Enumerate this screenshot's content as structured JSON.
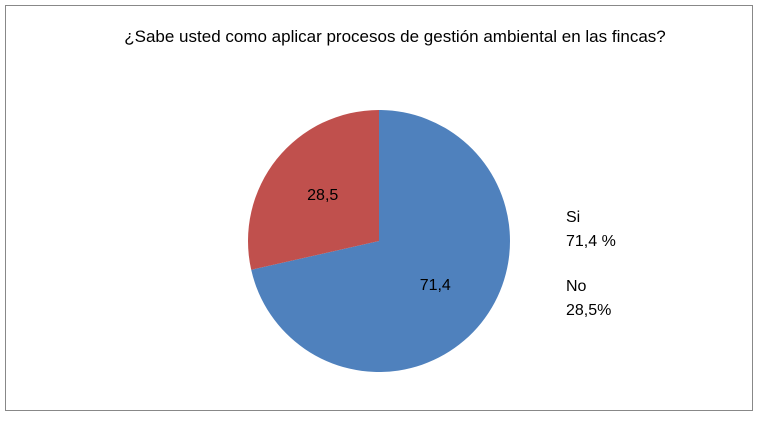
{
  "chart_data": {
    "type": "pie",
    "title": "¿Sabe usted como aplicar procesos de gestión ambiental en las fincas?",
    "categories": [
      "Si",
      "No"
    ],
    "values": [
      71.4,
      28.5
    ],
    "value_labels": [
      "71,4",
      "28,5"
    ],
    "legend_labels": [
      "71,4 %",
      "28,5%"
    ],
    "colors": [
      "#4f81bd",
      "#c0504d"
    ]
  }
}
